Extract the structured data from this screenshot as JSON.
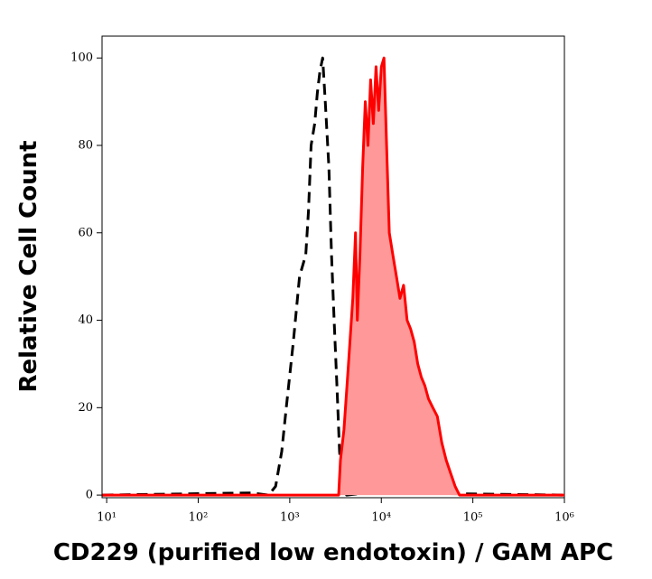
{
  "chart_data": {
    "type": "histogram-overlay",
    "x_label": "CD229 (purified low endotoxin) / GAM APC",
    "y_label": "Relative Cell Count",
    "x_scale": "log",
    "xlim": [
      8.9,
      1000000
    ],
    "ylim": [
      -0.6,
      105
    ],
    "xticks": [
      {
        "value": 10,
        "label": "10¹"
      },
      {
        "value": 100,
        "label": "10²"
      },
      {
        "value": 1000,
        "label": "10³"
      },
      {
        "value": 10000,
        "label": "10⁴"
      },
      {
        "value": 100000,
        "label": "10⁵"
      },
      {
        "value": 1000000,
        "label": "10⁶"
      }
    ],
    "yticks": [
      0,
      20,
      40,
      60,
      80,
      100
    ],
    "series": [
      {
        "color": "#000000",
        "dashed": true,
        "filled": false,
        "x": [
          9,
          374,
          585,
          700,
          818,
          915,
          1094,
          1279,
          1496,
          1600,
          1711,
          1871,
          2000,
          2138,
          2287,
          2445,
          2673,
          2858,
          3055,
          3273,
          3499,
          3741,
          4180,
          6839,
          13370,
          1000000
        ],
        "values": [
          0,
          0.5,
          0,
          2,
          10,
          20,
          35,
          50,
          55,
          65,
          80,
          85,
          92,
          97,
          100,
          90,
          75,
          55,
          40,
          25,
          10,
          3,
          0,
          0.5,
          0.5,
          0
        ]
      },
      {
        "color": "#ff0000",
        "fill": "#ff9999",
        "dashed": false,
        "filled": true,
        "x": [
          9,
          3420,
          3574,
          3908,
          4375,
          4887,
          5224,
          5470,
          5848,
          6252,
          6683,
          7145,
          7638,
          8185,
          8750,
          9354,
          10000,
          10690,
          11430,
          12220,
          13370,
          14620,
          15990,
          17490,
          19140,
          20890,
          22860,
          25000,
          27350,
          29920,
          32730,
          36560,
          40930,
          45710,
          51170,
          57150,
          63970,
          71450,
          1000000
        ],
        "values": [
          0,
          0,
          8,
          15,
          30,
          45,
          60,
          40,
          55,
          75,
          90,
          80,
          95,
          85,
          98,
          88,
          98,
          100,
          80,
          60,
          55,
          50,
          45,
          48,
          40,
          38,
          35,
          30,
          27,
          25,
          22,
          20,
          18,
          12,
          8,
          5,
          2,
          0,
          0
        ]
      }
    ]
  }
}
